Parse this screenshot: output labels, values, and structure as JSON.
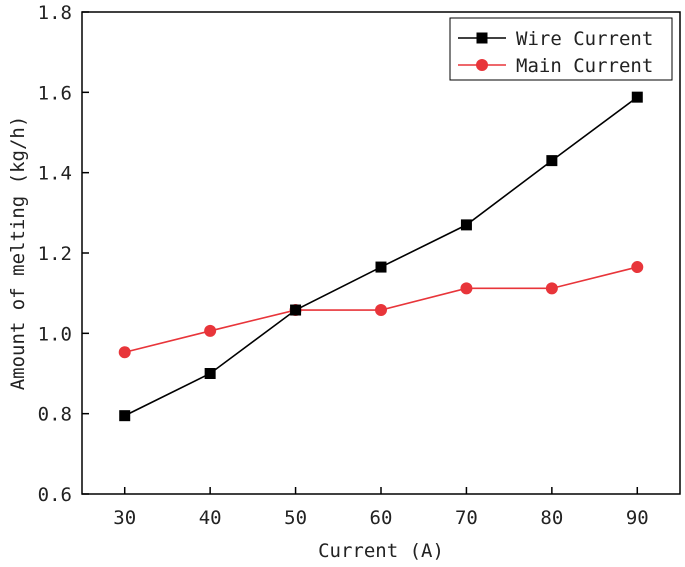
{
  "chart_data": {
    "type": "line",
    "title": "",
    "xlabel": "Current (A)",
    "ylabel": "Amount of melting (kg/h)",
    "x": [
      30,
      40,
      50,
      60,
      70,
      80,
      90
    ],
    "xlim": [
      25,
      95
    ],
    "ylim": [
      0.6,
      1.8
    ],
    "x_ticks": [
      30,
      40,
      50,
      60,
      70,
      80,
      90
    ],
    "y_ticks": [
      "0.6",
      "0.8",
      "1.0",
      "1.2",
      "1.4",
      "1.6",
      "1.8"
    ],
    "grid": false,
    "legend_position": "top-right",
    "series": [
      {
        "name": "Wire Current",
        "color": "#000000",
        "marker": "square",
        "values": [
          0.795,
          0.9,
          1.058,
          1.165,
          1.27,
          1.43,
          1.588
        ]
      },
      {
        "name": "Main Current",
        "color": "#e8353a",
        "marker": "circle",
        "values": [
          0.953,
          1.006,
          1.058,
          1.058,
          1.112,
          1.112,
          1.165
        ]
      }
    ]
  }
}
